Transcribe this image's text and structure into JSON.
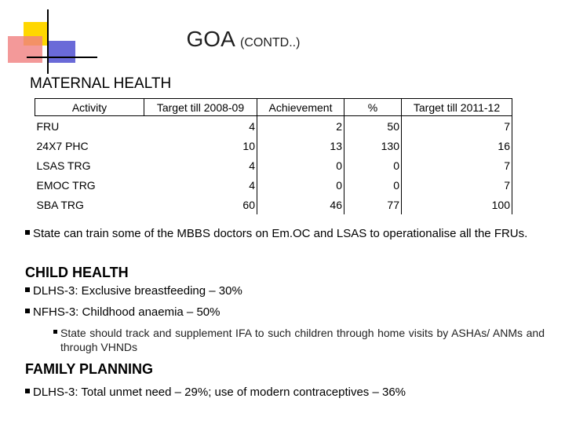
{
  "header": {
    "title": "GOA",
    "subtitle": "(CONTD..)"
  },
  "maternal": {
    "heading": "MATERNAL HEALTH",
    "table": {
      "columns": [
        "Activity",
        "Target till 2008-09",
        "Achievement",
        "%",
        "Target till 2011-12"
      ],
      "rows": [
        [
          "FRU",
          4,
          2,
          50,
          7
        ],
        [
          "24X7 PHC",
          10,
          13,
          130,
          16
        ],
        [
          "LSAS TRG",
          4,
          0,
          0,
          7
        ],
        [
          "EMOC TRG",
          4,
          0,
          0,
          7
        ],
        [
          "SBA TRG",
          60,
          46,
          77,
          100
        ]
      ]
    },
    "bullets": [
      "State can train some of the MBBS doctors on Em.OC and LSAS to operationalise all the FRUs."
    ]
  },
  "child": {
    "heading": "CHILD HEALTH",
    "bullets": [
      "DLHS-3: Exclusive breastfeeding – 30%",
      "NFHS-3: Childhood anaemia – 50%"
    ],
    "sub_bullets": [
      "State should track and supplement IFA to such children through home visits by ASHAs/ ANMs and through VHNDs"
    ]
  },
  "family": {
    "heading": "FAMILY PLANNING",
    "bullets": [
      "DLHS-3: Total unmet need – 29%; use of modern contraceptives – 36%"
    ]
  }
}
